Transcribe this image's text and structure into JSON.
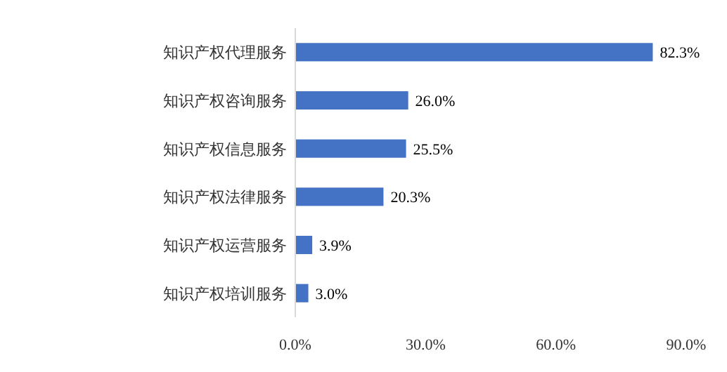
{
  "chart_data": {
    "type": "bar",
    "orientation": "horizontal",
    "categories": [
      "知识产权代理服务",
      "知识产权咨询服务",
      "知识产权信息服务",
      "知识产权法律服务",
      "知识产权运营服务",
      "知识产权培训服务"
    ],
    "values": [
      82.3,
      26.0,
      25.5,
      20.3,
      3.9,
      3.0
    ],
    "value_labels": [
      "82.3%",
      "26.0%",
      "25.5%",
      "20.3%",
      "3.9%",
      "3.0%"
    ],
    "color": "#4472c4",
    "xlim": [
      0,
      90
    ],
    "xticks": [
      {
        "value": 0,
        "label": "0.0%"
      },
      {
        "value": 30,
        "label": "30.0%"
      },
      {
        "value": 60,
        "label": "60.0%"
      },
      {
        "value": 90,
        "label": "90.0%"
      }
    ],
    "grid": false
  }
}
